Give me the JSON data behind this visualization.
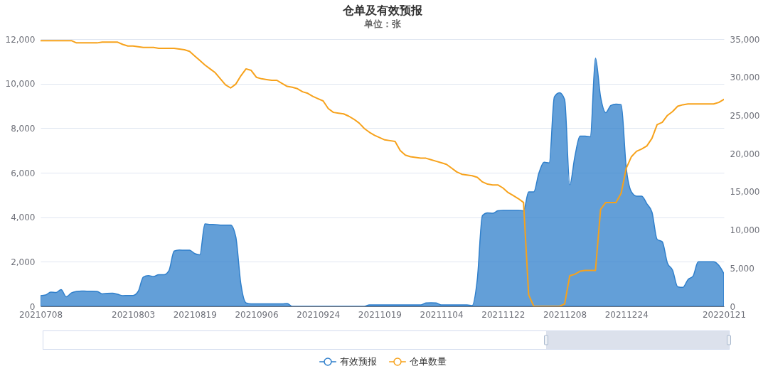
{
  "chart_data": {
    "type": "line",
    "title": "仓单及有效预报",
    "subtitle": "单位：张",
    "categories": [
      "20210708",
      null,
      null,
      null,
      null,
      null,
      null,
      null,
      null,
      null,
      null,
      null,
      null,
      null,
      null,
      null,
      null,
      null,
      "20210803",
      null,
      null,
      null,
      null,
      null,
      null,
      null,
      null,
      null,
      null,
      null,
      "20210819",
      null,
      null,
      null,
      null,
      null,
      null,
      null,
      null,
      null,
      null,
      null,
      "20210906",
      null,
      null,
      null,
      null,
      null,
      null,
      null,
      null,
      null,
      null,
      null,
      "20210924",
      null,
      null,
      null,
      null,
      null,
      null,
      null,
      null,
      null,
      null,
      null,
      "20211019",
      null,
      null,
      null,
      null,
      null,
      null,
      null,
      null,
      null,
      null,
      null,
      "20211104",
      null,
      null,
      null,
      null,
      null,
      null,
      null,
      null,
      null,
      null,
      null,
      "20211122",
      null,
      null,
      null,
      null,
      null,
      null,
      null,
      null,
      null,
      null,
      null,
      "20211208",
      null,
      null,
      null,
      null,
      null,
      null,
      null,
      null,
      null,
      null,
      null,
      "20211224",
      null,
      null,
      null,
      null,
      null,
      null,
      null,
      null,
      null,
      null,
      null,
      null,
      null,
      null,
      null,
      null,
      null,
      null,
      "20220121"
    ],
    "series": [
      {
        "name": "有效预报",
        "type": "area",
        "color": "#2f7fcb",
        "values": [
          480,
          510,
          640,
          620,
          750,
          430,
          600,
          670,
          690,
          680,
          680,
          670,
          560,
          580,
          590,
          540,
          480,
          490,
          490,
          670,
          1310,
          1380,
          1340,
          1420,
          1420,
          1610,
          2480,
          2530,
          2520,
          2520,
          2370,
          2310,
          3700,
          3680,
          3670,
          3650,
          3650,
          3650,
          3120,
          990,
          150,
          110,
          110,
          110,
          110,
          110,
          110,
          110,
          130,
          0,
          0,
          0,
          0,
          0,
          0,
          0,
          0,
          0,
          0,
          0,
          0,
          0,
          0,
          0,
          60,
          60,
          60,
          60,
          60,
          60,
          60,
          60,
          60,
          60,
          60,
          150,
          160,
          150,
          60,
          60,
          60,
          60,
          60,
          60,
          30,
          1200,
          4080,
          4200,
          4180,
          4290,
          4310,
          4310,
          4310,
          4310,
          4290,
          5140,
          5140,
          5990,
          6470,
          6440,
          9400,
          9590,
          9290,
          5460,
          6740,
          7640,
          7640,
          7610,
          11150,
          9400,
          8700,
          9020,
          9080,
          9060,
          6200,
          5140,
          4950,
          4950,
          4610,
          4230,
          3010,
          2900,
          1950,
          1630,
          880,
          850,
          1200,
          1360,
          2000,
          2000,
          2000,
          2000,
          1840,
          1470
        ]
      },
      {
        "name": "仓单数量",
        "type": "line",
        "color": "#f7a21b",
        "axis": "y2",
        "values": [
          34800,
          34800,
          34800,
          34800,
          34800,
          34800,
          34800,
          34500,
          34500,
          34500,
          34500,
          34500,
          34600,
          34600,
          34600,
          34600,
          34300,
          34100,
          34100,
          34000,
          33900,
          33900,
          33900,
          33800,
          33800,
          33800,
          33800,
          33700,
          33600,
          33400,
          32800,
          32200,
          31600,
          31100,
          30600,
          29800,
          29000,
          28600,
          29100,
          30200,
          31100,
          30900,
          30000,
          29800,
          29700,
          29600,
          29600,
          29200,
          28800,
          28700,
          28500,
          28100,
          27900,
          27500,
          27200,
          26900,
          25900,
          25400,
          25300,
          25200,
          24900,
          24500,
          24000,
          23300,
          22800,
          22400,
          22100,
          21800,
          21700,
          21600,
          20400,
          19800,
          19600,
          19500,
          19400,
          19400,
          19200,
          19000,
          18800,
          18600,
          18100,
          17600,
          17300,
          17200,
          17100,
          16900,
          16300,
          16000,
          15900,
          15900,
          15500,
          14900,
          14500,
          14100,
          13600,
          1500,
          0,
          0,
          0,
          0,
          0,
          0,
          300,
          4000,
          4200,
          4600,
          4700,
          4700,
          4700,
          12700,
          13600,
          13600,
          13600,
          14800,
          18100,
          19600,
          20300,
          20600,
          21000,
          22000,
          23800,
          24100,
          25000,
          25500,
          26200,
          26400,
          26500,
          26500,
          26500,
          26500,
          26500,
          26500,
          26700,
          27100
        ]
      }
    ],
    "ylim": [
      0,
      12000
    ],
    "yticks": [
      0,
      {
        "value": 2000,
        "label": "2,000"
      },
      {
        "value": 4000,
        "label": "4,000"
      },
      {
        "value": 6000,
        "label": "6,000"
      },
      {
        "value": 8000,
        "label": "8,000"
      },
      {
        "value": 10000,
        "label": "10,000"
      },
      {
        "value": 12000,
        "label": "12,000"
      }
    ],
    "y2lim": [
      0,
      35000
    ],
    "y2ticks": [
      0,
      {
        "value": 5000,
        "label": "5,000"
      },
      {
        "value": 10000,
        "label": "10,000"
      },
      {
        "value": 15000,
        "label": "15,000"
      },
      {
        "value": 20000,
        "label": "20,000"
      },
      {
        "value": 25000,
        "label": "25,000"
      },
      {
        "value": 30000,
        "label": "30,000"
      },
      {
        "value": 35000,
        "label": "35,000"
      }
    ],
    "grid": "y",
    "legend": "bottom"
  }
}
